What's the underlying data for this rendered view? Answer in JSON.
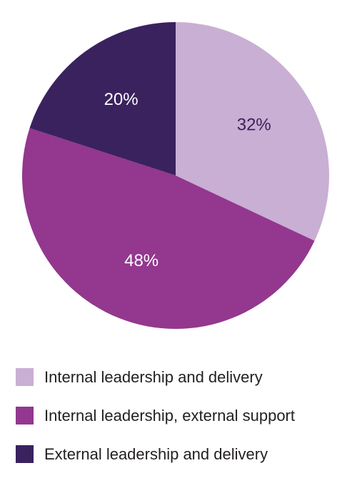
{
  "chart_data": {
    "type": "pie",
    "categories": [
      "Internal leadership and delivery",
      "Internal leadership, external support",
      "External leadership and delivery"
    ],
    "values": [
      32,
      48,
      20
    ],
    "value_labels": [
      "32%",
      "48%",
      "20%"
    ],
    "colors": [
      "#c9afd3",
      "#93378f",
      "#3a225f"
    ],
    "label_colors": [
      "#3a225f",
      "#ffffff",
      "#ffffff"
    ],
    "start": "12 o'clock",
    "direction": "clockwise",
    "legend_position": "bottom"
  },
  "legend": {
    "items": [
      {
        "label": "Internal leadership and delivery",
        "color": "#c9afd3"
      },
      {
        "label": "Internal leadership, external support",
        "color": "#93378f"
      },
      {
        "label": "External leadership and delivery",
        "color": "#3a225f"
      }
    ]
  }
}
